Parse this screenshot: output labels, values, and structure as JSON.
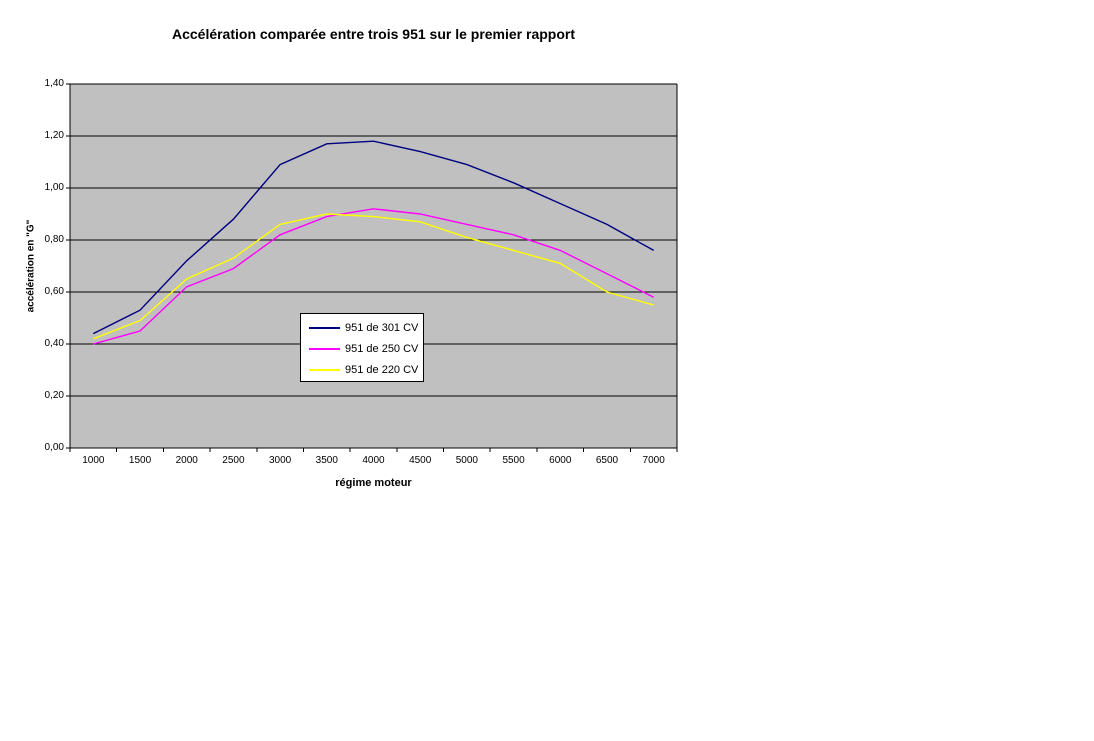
{
  "page": {
    "background": "#FFFFFF"
  },
  "chart_data": {
    "type": "line",
    "title": "Accélération comparée entre trois 951 sur le premier rapport",
    "xlabel": "régime moteur",
    "ylabel": "accélération en \"G\"",
    "categories": [
      1000,
      1500,
      2000,
      2500,
      3000,
      3500,
      4000,
      4500,
      5000,
      5500,
      6000,
      6500,
      7000
    ],
    "series": [
      {
        "name": "951 de 301 CV",
        "color": "#000080",
        "values": [
          0.44,
          0.53,
          0.72,
          0.88,
          1.09,
          1.17,
          1.18,
          1.14,
          1.09,
          1.02,
          0.94,
          0.86,
          0.76
        ]
      },
      {
        "name": "951 de 250 CV",
        "color": "#FF00FF",
        "values": [
          0.4,
          0.45,
          0.62,
          0.69,
          0.82,
          0.89,
          0.92,
          0.9,
          0.86,
          0.82,
          0.76,
          0.67,
          0.58
        ]
      },
      {
        "name": "951 de 220 CV",
        "color": "#FFFF00",
        "values": [
          0.42,
          0.49,
          0.65,
          0.73,
          0.86,
          0.9,
          0.89,
          0.87,
          0.81,
          0.76,
          0.71,
          0.6,
          0.55
        ]
      }
    ],
    "ylim": [
      0,
      1.4
    ],
    "ytick_step": 0.2,
    "ytick_labels": [
      "0,00",
      "0,20",
      "0,40",
      "0,60",
      "0,80",
      "1,00",
      "1,20",
      "1,40"
    ],
    "grid": true,
    "legend_position": "center",
    "plot_bg": "#C0C0C0",
    "grid_color": "#000000",
    "axis_color": "#000000"
  }
}
